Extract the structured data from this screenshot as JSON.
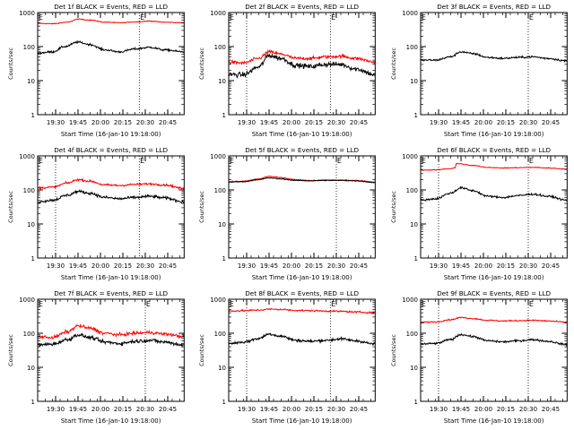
{
  "colors": {
    "events": "#000000",
    "lld": "#ff0000",
    "background": "#ffffff"
  },
  "shared": {
    "ylabel": "Counts/sec",
    "xlabel": "Start Time (16-Jan-10 19:18:00)",
    "yticks": [
      "1",
      "10",
      "100",
      "1000"
    ],
    "xticks": [
      "19:30",
      "19:45",
      "20:00",
      "20:15",
      "20:30",
      "20:45"
    ],
    "marker": "E"
  },
  "chart_data": [
    {
      "type": "line",
      "title": "Det 1f BLACK = Events, RED = LLD",
      "yscale": "log",
      "ylim": [
        1,
        1000
      ],
      "grid": false,
      "xlim_minutes": [
        0,
        98
      ],
      "xticks_minutes": [
        12,
        27,
        42,
        57,
        72,
        87
      ],
      "vlines_minutes": [
        -4,
        68
      ],
      "series": [
        {
          "color": "red",
          "x": [
            0,
            10,
            20,
            27,
            35,
            45,
            55,
            65,
            75,
            85,
            98
          ],
          "values": [
            480,
            470,
            520,
            640,
            600,
            520,
            500,
            530,
            560,
            520,
            500
          ],
          "noise": 0.02
        },
        {
          "color": "black",
          "x": [
            0,
            10,
            18,
            27,
            35,
            45,
            55,
            65,
            75,
            85,
            98
          ],
          "values": [
            65,
            70,
            100,
            135,
            115,
            80,
            70,
            85,
            95,
            80,
            70
          ],
          "noise": 0.05
        }
      ]
    },
    {
      "type": "line",
      "title": "Det 2f BLACK = Events, RED = LLD",
      "yscale": "log",
      "ylim": [
        1,
        1000
      ],
      "grid": false,
      "xlim_minutes": [
        0,
        98
      ],
      "xticks_minutes": [
        12,
        27,
        42,
        57,
        72,
        87
      ],
      "vlines_minutes": [
        12,
        68
      ],
      "series": [
        {
          "color": "red",
          "x": [
            0,
            10,
            20,
            27,
            35,
            45,
            55,
            65,
            75,
            85,
            98
          ],
          "values": [
            35,
            33,
            45,
            70,
            60,
            45,
            45,
            50,
            52,
            45,
            35
          ],
          "noise": 0.08
        },
        {
          "color": "black",
          "x": [
            0,
            10,
            20,
            27,
            35,
            45,
            55,
            65,
            75,
            85,
            98
          ],
          "values": [
            15,
            15,
            25,
            55,
            45,
            28,
            26,
            30,
            30,
            22,
            15
          ],
          "noise": 0.12
        }
      ]
    },
    {
      "type": "line",
      "title": "Det 3f BLACK = Events, RED = LLD",
      "yscale": "log",
      "ylim": [
        1,
        1000
      ],
      "grid": false,
      "xlim_minutes": [
        0,
        98
      ],
      "xticks_minutes": [
        12,
        27,
        42,
        57,
        72,
        87
      ],
      "vlines_minutes": [
        -4,
        72
      ],
      "series": [
        {
          "color": "black",
          "x": [
            0,
            10,
            20,
            27,
            35,
            45,
            55,
            65,
            75,
            85,
            98
          ],
          "values": [
            40,
            40,
            50,
            70,
            62,
            48,
            45,
            48,
            50,
            45,
            38
          ],
          "noise": 0.05
        }
      ]
    },
    {
      "type": "line",
      "title": "Det 4f BLACK = Events, RED = LLD",
      "yscale": "log",
      "ylim": [
        1,
        1000
      ],
      "grid": false,
      "xlim_minutes": [
        0,
        98
      ],
      "xticks_minutes": [
        12,
        27,
        42,
        57,
        72,
        87
      ],
      "vlines_minutes": [
        12,
        68
      ],
      "series": [
        {
          "color": "red",
          "x": [
            0,
            10,
            20,
            27,
            35,
            45,
            55,
            65,
            75,
            85,
            98
          ],
          "values": [
            115,
            120,
            160,
            200,
            180,
            140,
            135,
            145,
            150,
            140,
            110
          ],
          "noise": 0.05
        },
        {
          "color": "black",
          "x": [
            0,
            10,
            20,
            27,
            35,
            45,
            55,
            65,
            75,
            85,
            98
          ],
          "values": [
            45,
            50,
            70,
            90,
            80,
            60,
            55,
            60,
            65,
            58,
            45
          ],
          "noise": 0.07
        }
      ]
    },
    {
      "type": "line",
      "title": "Det 5f BLACK = Events, RED = LLD",
      "yscale": "log",
      "ylim": [
        1,
        1000
      ],
      "grid": false,
      "xlim_minutes": [
        0,
        98
      ],
      "xticks_minutes": [
        12,
        27,
        42,
        57,
        72,
        87
      ],
      "vlines_minutes": [
        -4,
        72
      ],
      "series": [
        {
          "color": "red",
          "x": [
            0,
            10,
            20,
            27,
            35,
            45,
            55,
            65,
            75,
            85,
            98
          ],
          "values": [
            175,
            180,
            210,
            250,
            230,
            200,
            190,
            195,
            195,
            190,
            170
          ],
          "noise": 0.02
        },
        {
          "color": "black",
          "x": [
            0,
            10,
            20,
            27,
            35,
            45,
            55,
            65,
            75,
            85,
            98
          ],
          "values": [
            170,
            175,
            200,
            225,
            210,
            190,
            185,
            190,
            190,
            185,
            165
          ],
          "noise": 0.02
        }
      ]
    },
    {
      "type": "line",
      "title": "Det 6f BLACK = Events, RED = LLD",
      "yscale": "log",
      "ylim": [
        1,
        1000
      ],
      "grid": false,
      "xlim_minutes": [
        0,
        98
      ],
      "xticks_minutes": [
        12,
        27,
        42,
        57,
        72,
        87
      ],
      "vlines_minutes": [
        12,
        72
      ],
      "series": [
        {
          "color": "red",
          "x": [
            0,
            10,
            20,
            23,
            24,
            35,
            45,
            55,
            65,
            75,
            85,
            98
          ],
          "values": [
            380,
            390,
            420,
            440,
            600,
            520,
            460,
            440,
            450,
            460,
            440,
            410
          ],
          "noise": 0.02
        },
        {
          "color": "black",
          "x": [
            0,
            10,
            20,
            27,
            35,
            45,
            55,
            65,
            75,
            85,
            98
          ],
          "values": [
            50,
            55,
            80,
            115,
            95,
            65,
            60,
            68,
            75,
            65,
            50
          ],
          "noise": 0.05
        }
      ]
    },
    {
      "type": "line",
      "title": "Det 7f BLACK = Events, RED = LLD",
      "yscale": "log",
      "ylim": [
        1,
        1000
      ],
      "grid": false,
      "xlim_minutes": [
        0,
        98
      ],
      "xticks_minutes": [
        12,
        27,
        42,
        57,
        72,
        87
      ],
      "vlines_minutes": [
        -4,
        72
      ],
      "series": [
        {
          "color": "red",
          "x": [
            0,
            10,
            20,
            27,
            35,
            45,
            55,
            65,
            75,
            85,
            98
          ],
          "values": [
            80,
            75,
            110,
            165,
            140,
            100,
            90,
            100,
            105,
            95,
            80
          ],
          "noise": 0.08
        },
        {
          "color": "black",
          "x": [
            0,
            10,
            20,
            27,
            35,
            45,
            55,
            65,
            75,
            85,
            98
          ],
          "values": [
            45,
            48,
            65,
            90,
            75,
            55,
            50,
            58,
            62,
            55,
            45
          ],
          "noise": 0.09
        }
      ]
    },
    {
      "type": "line",
      "title": "Det 8f BLACK = Events, RED = LLD",
      "yscale": "log",
      "ylim": [
        1,
        1000
      ],
      "grid": false,
      "xlim_minutes": [
        0,
        98
      ],
      "xticks_minutes": [
        12,
        27,
        42,
        57,
        72,
        87
      ],
      "vlines_minutes": [
        12,
        68
      ],
      "series": [
        {
          "color": "red",
          "x": [
            0,
            10,
            20,
            27,
            35,
            45,
            55,
            65,
            75,
            85,
            98
          ],
          "values": [
            450,
            460,
            480,
            510,
            500,
            470,
            460,
            450,
            440,
            420,
            400
          ],
          "noise": 0.04
        },
        {
          "color": "black",
          "x": [
            0,
            10,
            20,
            27,
            35,
            45,
            55,
            65,
            75,
            85,
            98
          ],
          "values": [
            50,
            55,
            70,
            95,
            82,
            62,
            58,
            62,
            68,
            60,
            48
          ],
          "noise": 0.07
        }
      ]
    },
    {
      "type": "line",
      "title": "Det 9f BLACK = Events, RED = LLD",
      "yscale": "log",
      "ylim": [
        1,
        1000
      ],
      "grid": false,
      "xlim_minutes": [
        0,
        98
      ],
      "xticks_minutes": [
        12,
        27,
        42,
        57,
        72,
        87
      ],
      "vlines_minutes": [
        12,
        72
      ],
      "series": [
        {
          "color": "red",
          "x": [
            0,
            10,
            20,
            27,
            35,
            45,
            55,
            65,
            75,
            85,
            98
          ],
          "values": [
            210,
            215,
            250,
            290,
            270,
            240,
            230,
            235,
            240,
            230,
            210
          ],
          "noise": 0.03
        },
        {
          "color": "black",
          "x": [
            0,
            10,
            20,
            27,
            35,
            45,
            55,
            65,
            75,
            85,
            98
          ],
          "values": [
            48,
            50,
            65,
            92,
            80,
            60,
            56,
            60,
            65,
            58,
            46
          ],
          "noise": 0.05
        }
      ]
    }
  ]
}
